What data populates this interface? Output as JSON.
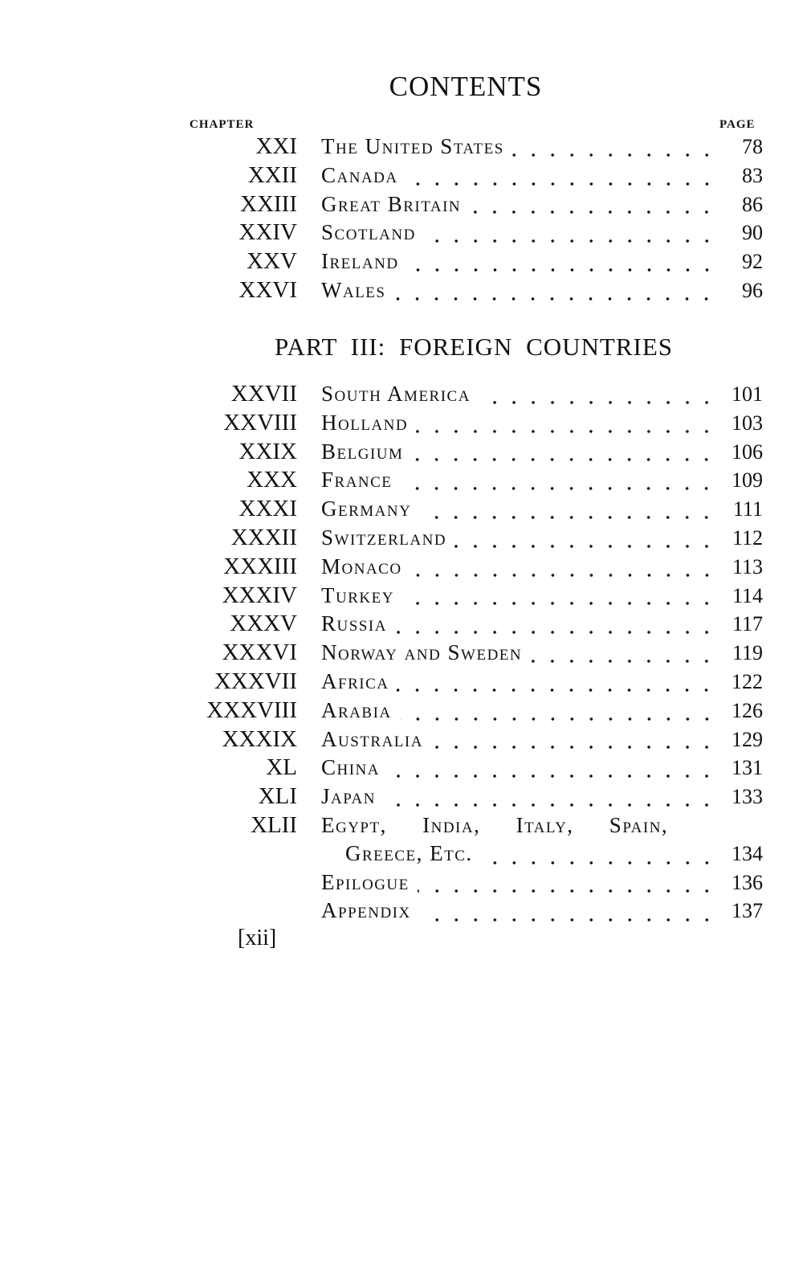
{
  "title": "CONTENTS",
  "column_headers": {
    "chapter": "CHAPTER",
    "page": "PAGE"
  },
  "section1": [
    {
      "num": "XXI",
      "title": "The United States",
      "page": "78"
    },
    {
      "num": "XXII",
      "title": "Canada",
      "page": "83"
    },
    {
      "num": "XXIII",
      "title": "Great Britain",
      "page": "86"
    },
    {
      "num": "XXIV",
      "title": "Scotland",
      "page": "90"
    },
    {
      "num": "XXV",
      "title": "Ireland",
      "page": "92"
    },
    {
      "num": "XXVI",
      "title": "Wales",
      "page": "96"
    }
  ],
  "part_heading": "PART III: FOREIGN COUNTRIES",
  "section2": [
    {
      "num": "XXVII",
      "title": "South America",
      "page": "101"
    },
    {
      "num": "XXVIII",
      "title": "Holland",
      "page": "103"
    },
    {
      "num": "XXIX",
      "title": "Belgium",
      "page": "106"
    },
    {
      "num": "XXX",
      "title": "France",
      "page": "109"
    },
    {
      "num": "XXXI",
      "title": "Germany",
      "page": "111"
    },
    {
      "num": "XXXII",
      "title": "Switzerland",
      "page": "112"
    },
    {
      "num": "XXXIII",
      "title": "Monaco",
      "page": "113"
    },
    {
      "num": "XXXIV",
      "title": "Turkey",
      "page": "114"
    },
    {
      "num": "XXXV",
      "title": "Russia",
      "page": "117"
    },
    {
      "num": "XXXVI",
      "title": "Norway and Sweden",
      "page": "119"
    },
    {
      "num": "XXXVII",
      "title": "Africa",
      "page": "122"
    },
    {
      "num": "XXXVIII",
      "title": "Arabia",
      "page": "126"
    },
    {
      "num": "XXXIX",
      "title": "Australia",
      "page": "129"
    },
    {
      "num": "XL",
      "title": "China",
      "page": "131"
    },
    {
      "num": "XLI",
      "title": "Japan",
      "page": "133"
    }
  ],
  "last_chapter": {
    "num": "XLII",
    "title_line1": "Egypt, India, Italy, Spain,",
    "title_line2": "Greece, Etc.",
    "page": "134"
  },
  "back_matter": [
    {
      "title": "Epilogue",
      "page": "136"
    },
    {
      "title": "Appendix",
      "page": "137"
    }
  ],
  "folio": "[xii]"
}
